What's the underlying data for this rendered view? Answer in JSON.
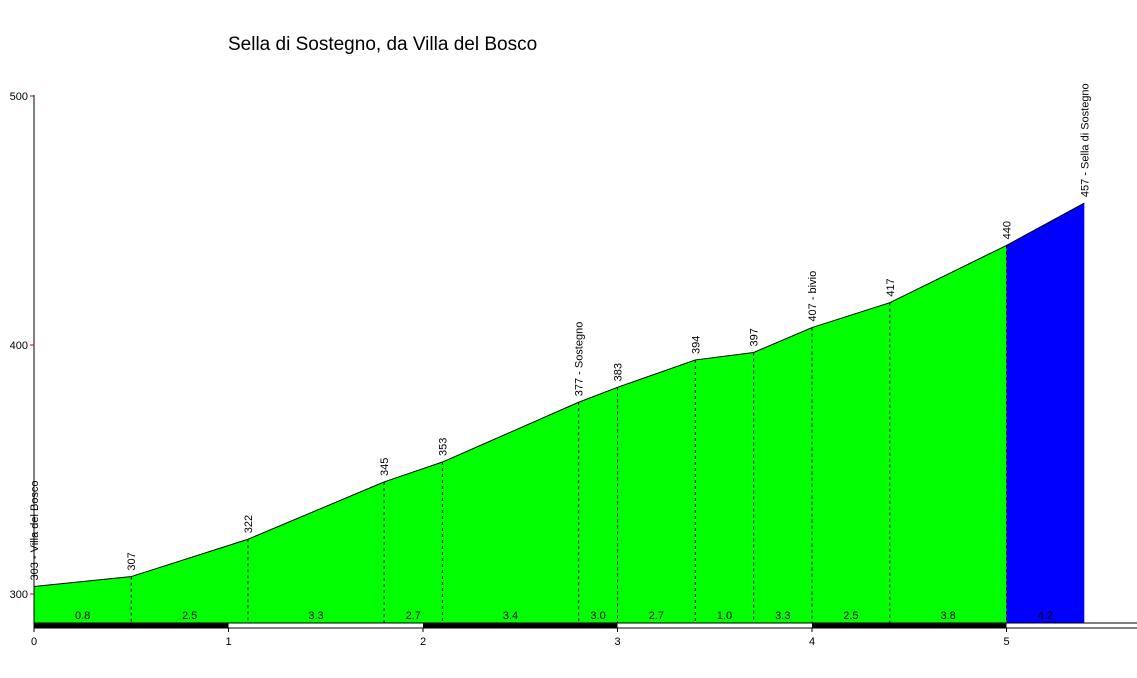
{
  "chart_data": {
    "type": "area",
    "title": "Sella di Sostegno, da Villa del Bosco",
    "xlabel": "",
    "ylabel": "",
    "xlim": [
      0,
      5.7
    ],
    "ylim": [
      300,
      500
    ],
    "y_ticks": [
      "300",
      "400",
      "500"
    ],
    "x_ticks": [
      "0",
      "1",
      "2",
      "3",
      "4",
      "5"
    ],
    "points": [
      {
        "x": 0.0,
        "y": 303,
        "label": "303 - Villa del Bosco"
      },
      {
        "x": 0.5,
        "y": 307,
        "label": "307"
      },
      {
        "x": 1.1,
        "y": 322,
        "label": "322"
      },
      {
        "x": 1.8,
        "y": 345,
        "label": "345"
      },
      {
        "x": 2.1,
        "y": 353,
        "label": "353"
      },
      {
        "x": 2.8,
        "y": 377,
        "label": "377 - Sostegno"
      },
      {
        "x": 3.0,
        "y": 383,
        "label": "383"
      },
      {
        "x": 3.4,
        "y": 394,
        "label": "394"
      },
      {
        "x": 3.7,
        "y": 397,
        "label": "397"
      },
      {
        "x": 4.0,
        "y": 407,
        "label": "407 - bivio"
      },
      {
        "x": 4.4,
        "y": 417,
        "label": "417"
      },
      {
        "x": 5.0,
        "y": 440,
        "label": "440"
      },
      {
        "x": 5.4,
        "y": 457,
        "label": "457 - Sella di Sostegno"
      }
    ],
    "gradients": [
      "0.8",
      "2.5",
      "3.3",
      "2.7",
      "3.4",
      "3.0",
      "2.7",
      "1.0",
      "3.3",
      "2.5",
      "3.8",
      "4.2"
    ],
    "colors": {
      "fill_main": "#00ff00",
      "fill_last": "#0000ff",
      "axis": "#000000",
      "y_tick": "#cc0000",
      "km_bar_dark": "#000000",
      "km_bar_light": "#ffffff"
    }
  }
}
